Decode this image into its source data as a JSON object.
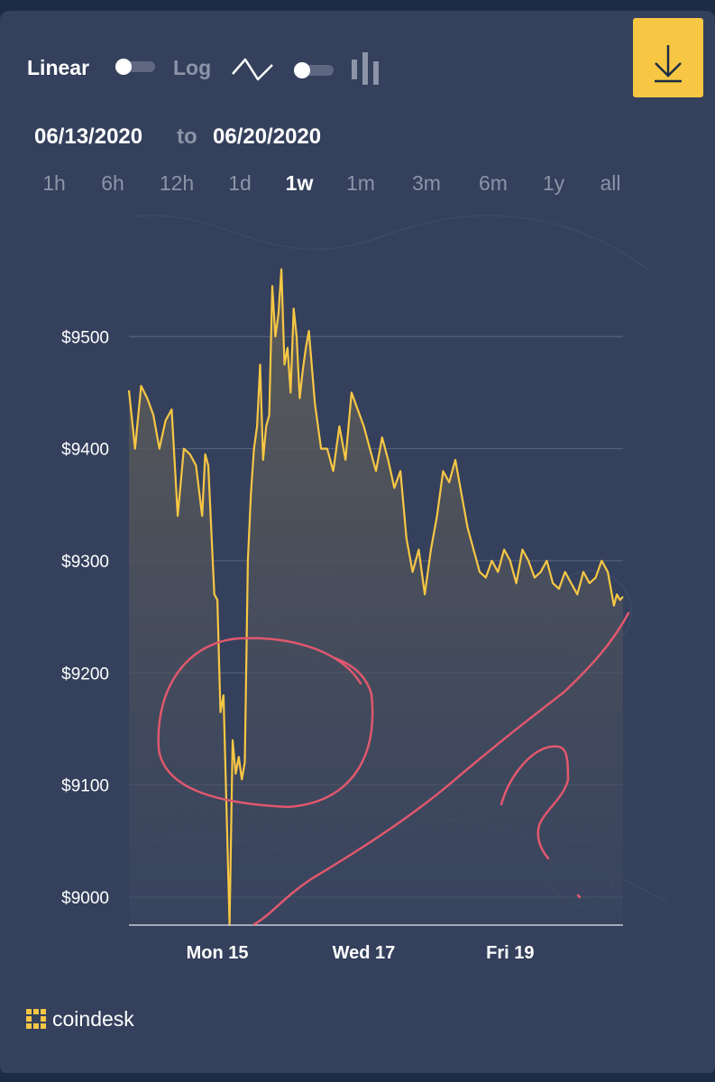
{
  "controls": {
    "linear_label": "Linear",
    "log_label": "Log",
    "line_chart_toggle": "off",
    "bar_chart_toggle": "off",
    "download_icon": "download-icon"
  },
  "date_range": {
    "from": "06/13/2020",
    "to_word": "to",
    "until": "06/20/2020"
  },
  "ranges": [
    {
      "label": "1h",
      "active": false
    },
    {
      "label": "6h",
      "active": false
    },
    {
      "label": "12h",
      "active": false
    },
    {
      "label": "1d",
      "active": false
    },
    {
      "label": "1w",
      "active": true
    },
    {
      "label": "1m",
      "active": false
    },
    {
      "label": "3m",
      "active": false
    },
    {
      "label": "6m",
      "active": false
    },
    {
      "label": "1y",
      "active": false
    },
    {
      "label": "all",
      "active": false
    }
  ],
  "brand": {
    "name": "coindesk",
    "accent": "#f7c744"
  },
  "chart_data": {
    "type": "area",
    "line_color": "#f7c744",
    "annotation_color": "#e0586e",
    "ylim": [
      8975,
      9575
    ],
    "yticks": [
      9000,
      9100,
      9200,
      9300,
      9400,
      9500
    ],
    "ytick_labels": [
      "$9000",
      "$9100",
      "$9200",
      "$9300",
      "$9400",
      "$9500"
    ],
    "x_range": [
      "2020-06-13T19:00",
      "2020-06-20T13:00"
    ],
    "xticks": [
      "2020-06-15",
      "2020-06-17",
      "2020-06-19"
    ],
    "xtick_labels": [
      "Mon 15",
      "Wed 17",
      "Fri 19"
    ],
    "grid": true,
    "series": [
      {
        "x": [
          "2020-06-13T19:00",
          "2020-06-13T21:00",
          "2020-06-13T23:00",
          "2020-06-14T01:00",
          "2020-06-14T03:00",
          "2020-06-14T05:00",
          "2020-06-14T07:00",
          "2020-06-14T09:00",
          "2020-06-14T11:00",
          "2020-06-14T13:00",
          "2020-06-14T15:00",
          "2020-06-14T17:00",
          "2020-06-14T19:00",
          "2020-06-14T20:00",
          "2020-06-14T21:00",
          "2020-06-14T23:00",
          "2020-06-15T00:00",
          "2020-06-15T01:00",
          "2020-06-15T02:00",
          "2020-06-15T03:00",
          "2020-06-15T04:00",
          "2020-06-15T05:00",
          "2020-06-15T06:00",
          "2020-06-15T07:00",
          "2020-06-15T08:00",
          "2020-06-15T09:00",
          "2020-06-15T10:00",
          "2020-06-15T11:00",
          "2020-06-15T12:00",
          "2020-06-15T13:00",
          "2020-06-15T14:00",
          "2020-06-15T15:00",
          "2020-06-15T16:00",
          "2020-06-15T17:00",
          "2020-06-15T18:00",
          "2020-06-15T19:00",
          "2020-06-15T20:00",
          "2020-06-15T21:00",
          "2020-06-15T22:00",
          "2020-06-15T23:00",
          "2020-06-16T00:00",
          "2020-06-16T01:00",
          "2020-06-16T02:00",
          "2020-06-16T03:00",
          "2020-06-16T04:00",
          "2020-06-16T05:00",
          "2020-06-16T06:00",
          "2020-06-16T08:00",
          "2020-06-16T10:00",
          "2020-06-16T12:00",
          "2020-06-16T14:00",
          "2020-06-16T16:00",
          "2020-06-16T18:00",
          "2020-06-16T20:00",
          "2020-06-16T22:00",
          "2020-06-17T00:00",
          "2020-06-17T02:00",
          "2020-06-17T04:00",
          "2020-06-17T06:00",
          "2020-06-17T08:00",
          "2020-06-17T10:00",
          "2020-06-17T12:00",
          "2020-06-17T14:00",
          "2020-06-17T16:00",
          "2020-06-17T18:00",
          "2020-06-17T20:00",
          "2020-06-17T22:00",
          "2020-06-18T00:00",
          "2020-06-18T02:00",
          "2020-06-18T04:00",
          "2020-06-18T06:00",
          "2020-06-18T08:00",
          "2020-06-18T10:00",
          "2020-06-18T12:00",
          "2020-06-18T14:00",
          "2020-06-18T16:00",
          "2020-06-18T18:00",
          "2020-06-18T20:00",
          "2020-06-18T22:00",
          "2020-06-19T00:00",
          "2020-06-19T02:00",
          "2020-06-19T04:00",
          "2020-06-19T06:00",
          "2020-06-19T08:00",
          "2020-06-19T10:00",
          "2020-06-19T12:00",
          "2020-06-19T14:00",
          "2020-06-19T16:00",
          "2020-06-19T18:00",
          "2020-06-19T20:00",
          "2020-06-19T22:00",
          "2020-06-20T00:00",
          "2020-06-20T02:00",
          "2020-06-20T04:00",
          "2020-06-20T06:00",
          "2020-06-20T08:00",
          "2020-06-20T09:00",
          "2020-06-20T10:00",
          "2020-06-20T11:00",
          "2020-06-20T12:00",
          "2020-06-20T13:00"
        ],
        "values": [
          9452,
          9400,
          9456,
          9445,
          9430,
          9400,
          9425,
          9435,
          9340,
          9400,
          9395,
          9385,
          9340,
          9395,
          9385,
          9270,
          9265,
          9165,
          9180,
          9080,
          8975,
          9140,
          9110,
          9125,
          9105,
          9120,
          9300,
          9360,
          9400,
          9420,
          9475,
          9390,
          9420,
          9430,
          9545,
          9500,
          9520,
          9560,
          9475,
          9490,
          9450,
          9525,
          9500,
          9445,
          9470,
          9490,
          9505,
          9440,
          9400,
          9400,
          9380,
          9420,
          9390,
          9450,
          9435,
          9420,
          9400,
          9380,
          9410,
          9390,
          9365,
          9380,
          9320,
          9290,
          9310,
          9270,
          9310,
          9340,
          9380,
          9370,
          9390,
          9360,
          9330,
          9310,
          9290,
          9285,
          9300,
          9290,
          9310,
          9300,
          9280,
          9310,
          9300,
          9285,
          9290,
          9300,
          9280,
          9275,
          9290,
          9280,
          9270,
          9290,
          9280,
          9285,
          9300,
          9290,
          9275,
          9260,
          9270,
          9265,
          9268
        ]
      }
    ]
  }
}
